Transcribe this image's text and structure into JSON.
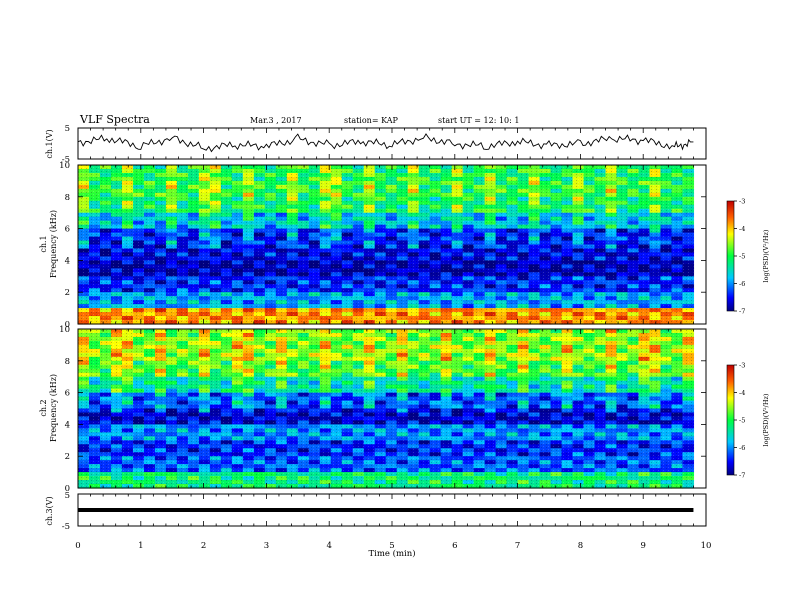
{
  "header": {
    "title": "VLF Spectra",
    "date": "Mar.3 , 2017",
    "station": "station= KAP",
    "start": "start  UT =  12: 10: 1"
  },
  "chart_data": [
    {
      "type": "line",
      "panel": "ch1-voltage",
      "ylabel": "ch.1(V)",
      "ylim": [
        -5,
        5
      ],
      "yticks": [
        "5",
        "-5"
      ],
      "xlim": [
        0,
        10
      ],
      "x": [
        0.0,
        0.5,
        1.0,
        1.5,
        2.0,
        2.5,
        3.0,
        3.5,
        4.0,
        4.5,
        5.0,
        5.5,
        6.0,
        6.5,
        7.0,
        7.5,
        8.0,
        8.5,
        9.0,
        9.5,
        9.8
      ],
      "values": [
        0.5,
        1.5,
        -1.0,
        2.0,
        -1.5,
        -0.5,
        -1.0,
        1.5,
        -0.5,
        0.5,
        -0.5,
        2.0,
        0.0,
        -1.0,
        0.5,
        -0.5,
        0.0,
        1.5,
        1.0,
        -1.0,
        0.5
      ],
      "line_color": "#000000"
    },
    {
      "type": "heatmap",
      "panel": "ch1-spectrogram",
      "ylabel_top": "ch.1",
      "ylabel": "Frequency (kHz)",
      "ylim": [
        0,
        10
      ],
      "yticks": [
        "0",
        "2",
        "4",
        "6",
        "8",
        "10"
      ],
      "xlim": [
        0,
        9.8
      ],
      "frequency_bands_khz": [
        0.5,
        1.5,
        2.5,
        3.5,
        4.5,
        5.5,
        6.5,
        7.5,
        8.5,
        9.5
      ],
      "log_psd_by_band": [
        -3.8,
        -5.9,
        -6.4,
        -6.8,
        -6.6,
        -6.5,
        -5.8,
        -5.2,
        -5.0,
        -5.1
      ],
      "colorbar": {
        "label": "log(PSD)(V²/Hz)",
        "ticks": [
          "-3",
          "-4",
          "-5",
          "-6",
          "-7"
        ],
        "range": [
          -7,
          -3
        ]
      }
    },
    {
      "type": "heatmap",
      "panel": "ch2-spectrogram",
      "ylabel_top": "ch.2",
      "ylabel": "Frequency (kHz)",
      "ylim": [
        0,
        10
      ],
      "yticks": [
        "0",
        "2",
        "4",
        "6",
        "8",
        "10"
      ],
      "xlim": [
        0,
        9.8
      ],
      "frequency_bands_khz": [
        0.5,
        1.5,
        2.5,
        3.5,
        4.5,
        5.5,
        6.5,
        7.5,
        8.5,
        9.5
      ],
      "log_psd_by_band": [
        -5.2,
        -6.2,
        -6.4,
        -6.0,
        -6.7,
        -6.3,
        -5.5,
        -4.9,
        -4.6,
        -4.7
      ],
      "colorbar": {
        "label": "log(PSD)(V²/Hz)",
        "ticks": [
          "-3",
          "-4",
          "-5",
          "-6",
          "-7"
        ],
        "range": [
          -7,
          -3
        ]
      }
    },
    {
      "type": "line",
      "panel": "ch3-voltage",
      "ylabel": "ch.3(V)",
      "ylim": [
        -5,
        5
      ],
      "yticks": [
        "5",
        "-5"
      ],
      "xlim": [
        0,
        10
      ],
      "x": [
        0,
        9.8
      ],
      "values": [
        0,
        0
      ],
      "line_color": "#000000"
    }
  ],
  "xaxis": {
    "label": "Time (min)",
    "ticks": [
      "0",
      "1",
      "2",
      "3",
      "4",
      "5",
      "6",
      "7",
      "8",
      "9",
      "10"
    ],
    "range": [
      0,
      10
    ]
  }
}
